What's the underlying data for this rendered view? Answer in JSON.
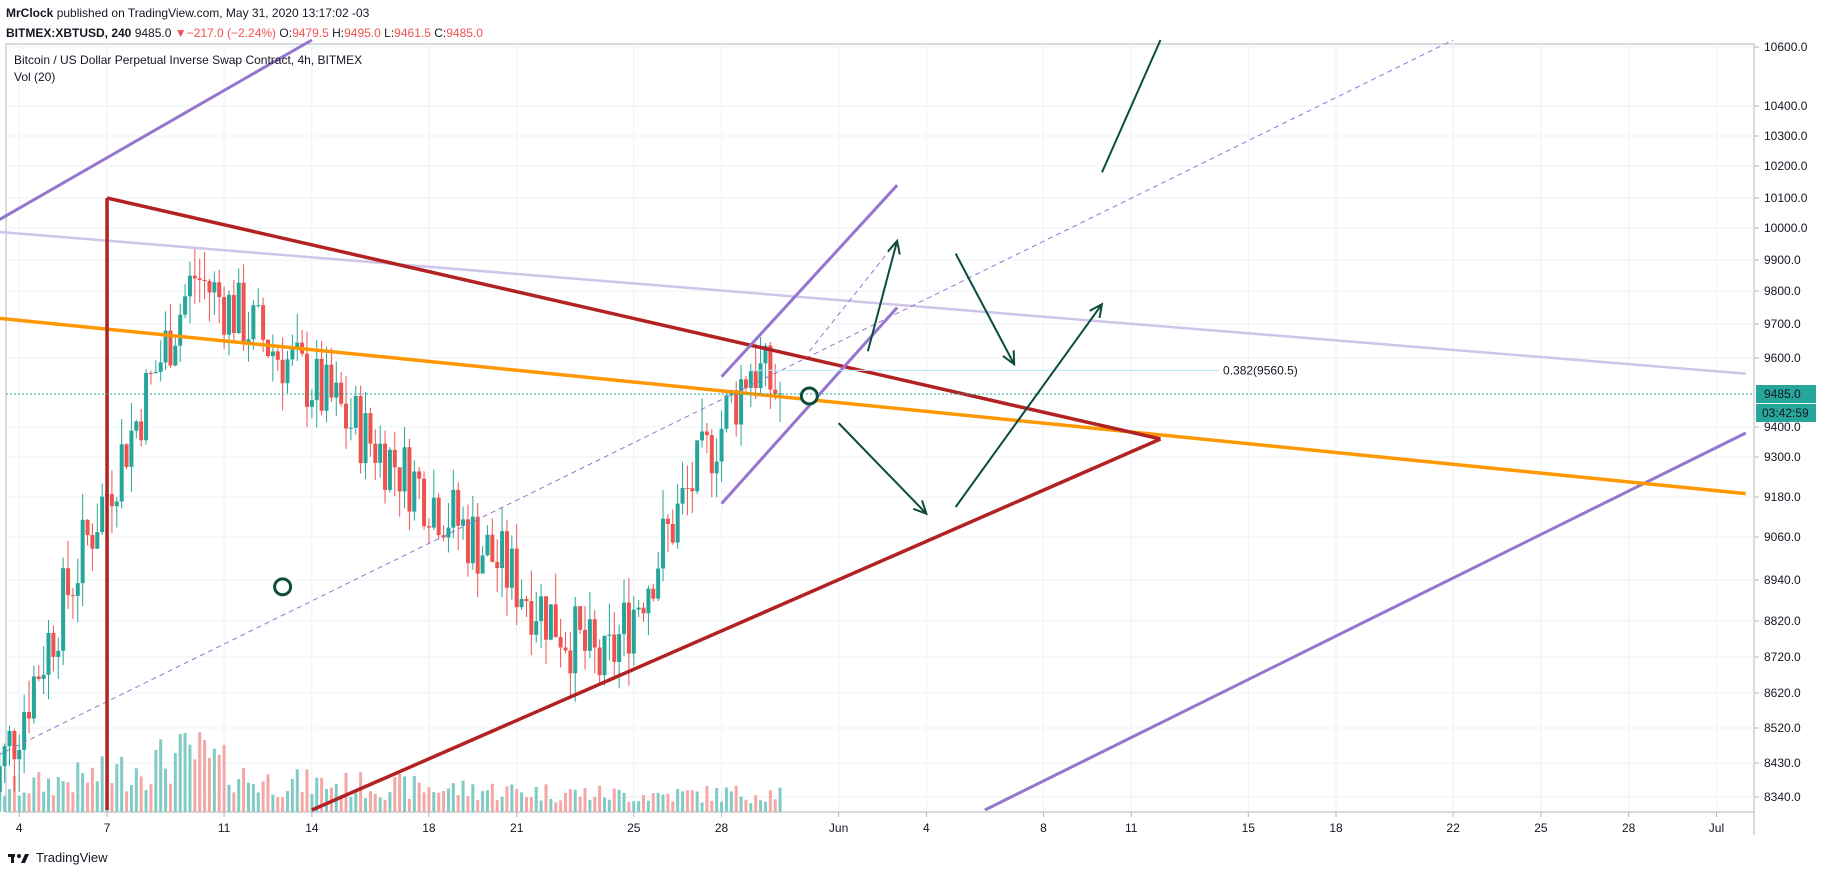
{
  "header": {
    "author": "MrClock",
    "published_text": "published on TradingView.com, May 31, 2020 13:17:02 -03",
    "symbol": "BITMEX:XBTUSD, 240",
    "last": "9485.0",
    "change_arrow": "▼",
    "change": "−217.0 (−2.24%)",
    "o_label": "O:",
    "o_value": "9479.5",
    "h_label": "H:",
    "h_value": "9495.0",
    "l_label": "L:",
    "l_value": "9461.5",
    "c_label": "C:",
    "c_value": "9485.0"
  },
  "footer": {
    "logo_icon": "tradingview-logo-icon",
    "brand": "TradingView"
  },
  "colors": {
    "up": "#26a69a",
    "down": "#ef5350",
    "vol_up": "#80cbc4",
    "vol_down": "#f5a7a6",
    "triangle": "#b22222",
    "orange": "#ff9800",
    "channel": "#9575cd",
    "channel_light": "#d1c4e9",
    "arrow": "#0b4d3a",
    "grid": "#eef1f5",
    "price_bg": "#26a69a"
  },
  "chart_data": {
    "type": "candlestick",
    "title": "Bitcoin / US Dollar Perpetual Inverse Swap Contract, 4h, BITMEX",
    "volume_label": "Vol (20)",
    "y_ticks": [
      8340,
      8430,
      8520,
      8620,
      8720,
      8820,
      8940,
      9060,
      9180,
      9300,
      9400,
      9485,
      9600,
      9700,
      9800,
      9900,
      10000,
      10100,
      10200,
      10300,
      10400,
      10600
    ],
    "y_tick_labels": [
      "8340.0",
      "8430.0",
      "8520.0",
      "8620.0",
      "8720.0",
      "8820.0",
      "8940.0",
      "9060.0",
      "9180.0",
      "9300.0",
      "9400.0",
      "9485.0",
      "9600.0",
      "9700.0",
      "9800.0",
      "9900.0",
      "10000.0",
      "10100.0",
      "10200.0",
      "10300.0",
      "10400.0",
      "10600.0"
    ],
    "x_labels": [
      {
        "date": "2020-05-04",
        "label": "4"
      },
      {
        "date": "2020-05-07",
        "label": "7"
      },
      {
        "date": "2020-05-11",
        "label": "11"
      },
      {
        "date": "2020-05-14",
        "label": "14"
      },
      {
        "date": "2020-05-18",
        "label": "18"
      },
      {
        "date": "2020-05-21",
        "label": "21"
      },
      {
        "date": "2020-05-25",
        "label": "25"
      },
      {
        "date": "2020-05-28",
        "label": "28"
      },
      {
        "date": "2020-06-01",
        "label": "Jun"
      },
      {
        "date": "2020-06-04",
        "label": "4"
      },
      {
        "date": "2020-06-08",
        "label": "8"
      },
      {
        "date": "2020-06-11",
        "label": "11"
      },
      {
        "date": "2020-06-15",
        "label": "15"
      },
      {
        "date": "2020-06-18",
        "label": "18"
      },
      {
        "date": "2020-06-22",
        "label": "22"
      },
      {
        "date": "2020-06-25",
        "label": "25"
      },
      {
        "date": "2020-06-28",
        "label": "28"
      },
      {
        "date": "2020-07-01",
        "label": "Jul"
      }
    ],
    "last_price": "9485.0",
    "countdown": "03:42:59",
    "fib_label": "0.382(9560.5)",
    "fib_level": 9560.5,
    "anchors": [
      {
        "date": "2020-05-03",
        "price": 8330
      },
      {
        "date": "2020-05-10",
        "price": 9850
      },
      {
        "date": "2020-05-17",
        "price": 9270
      },
      {
        "date": "2020-05-24",
        "price": 8680
      },
      {
        "date": "2020-05-29",
        "price": 9580
      },
      {
        "date": "2020-05-30",
        "price": 9485
      }
    ],
    "volume_anchors": [
      {
        "date": "2020-05-03",
        "v": 0.3
      },
      {
        "date": "2020-05-07",
        "v": 0.55
      },
      {
        "date": "2020-05-10",
        "v": 0.85
      },
      {
        "date": "2020-05-12",
        "v": 0.45
      },
      {
        "date": "2020-05-18",
        "v": 0.35
      },
      {
        "date": "2020-05-25",
        "v": 0.25
      },
      {
        "date": "2020-05-30",
        "v": 0.28
      }
    ],
    "drawings": {
      "triangle_upper": [
        {
          "date": "2020-05-07",
          "price": 10100
        },
        {
          "date": "2020-06-12",
          "price": 9360
        }
      ],
      "triangle_left": [
        {
          "date": "2020-05-07",
          "price": 10100
        },
        {
          "date": "2020-05-07",
          "price": 8300
        }
      ],
      "triangle_lower": [
        {
          "date": "2020-05-14",
          "price": 8300
        },
        {
          "date": "2020-06-12",
          "price": 9360
        }
      ],
      "orange_line": [
        {
          "date": "2020-05-03",
          "price": 9720
        },
        {
          "date": "2020-07-02",
          "price": 9190
        }
      ],
      "light_purple": [
        {
          "date": "2020-05-03",
          "price": 9990
        },
        {
          "date": "2020-07-02",
          "price": 9550
        }
      ],
      "purple_top": [
        {
          "date": "2020-05-03",
          "price": 10010
        },
        {
          "date": "2020-05-14",
          "price": 10620
        }
      ],
      "purple_bottom": [
        {
          "date": "2020-06-06",
          "price": 8300
        },
        {
          "date": "2020-07-02",
          "price": 9380
        }
      ],
      "channel_upper": [
        {
          "date": "2020-05-28",
          "price": 9540
        },
        {
          "date": "2020-06-03",
          "price": 10140
        }
      ],
      "channel_lower": [
        {
          "date": "2020-05-28",
          "price": 9160
        },
        {
          "date": "2020-06-03",
          "price": 9750
        }
      ],
      "dashed_line": [
        {
          "date": "2020-05-03",
          "price": 8440
        },
        {
          "date": "2020-06-22",
          "price": 10620
        }
      ],
      "dashed_short": [
        {
          "date": "2020-05-31",
          "price": 9620
        },
        {
          "date": "2020-06-03",
          "price": 9960
        }
      ],
      "arrows": [
        [
          {
            "date": "2020-06-02",
            "price": 9620
          },
          {
            "date": "2020-06-03",
            "price": 9960
          }
        ],
        [
          {
            "date": "2020-06-05",
            "price": 9920
          },
          {
            "date": "2020-06-07",
            "price": 9580
          }
        ],
        [
          {
            "date": "2020-06-01",
            "price": 9410
          },
          {
            "date": "2020-06-04",
            "price": 9130
          }
        ],
        [
          {
            "date": "2020-06-05",
            "price": 9150
          },
          {
            "date": "2020-06-10",
            "price": 9760
          }
        ],
        [
          {
            "date": "2020-06-10",
            "price": 10180
          },
          {
            "date": "2020-06-12",
            "price": 10620
          }
        ]
      ],
      "markers": [
        {
          "date": "2020-05-13",
          "price": 8920
        },
        {
          "date": "2020-05-31",
          "price": 9480
        }
      ]
    }
  }
}
